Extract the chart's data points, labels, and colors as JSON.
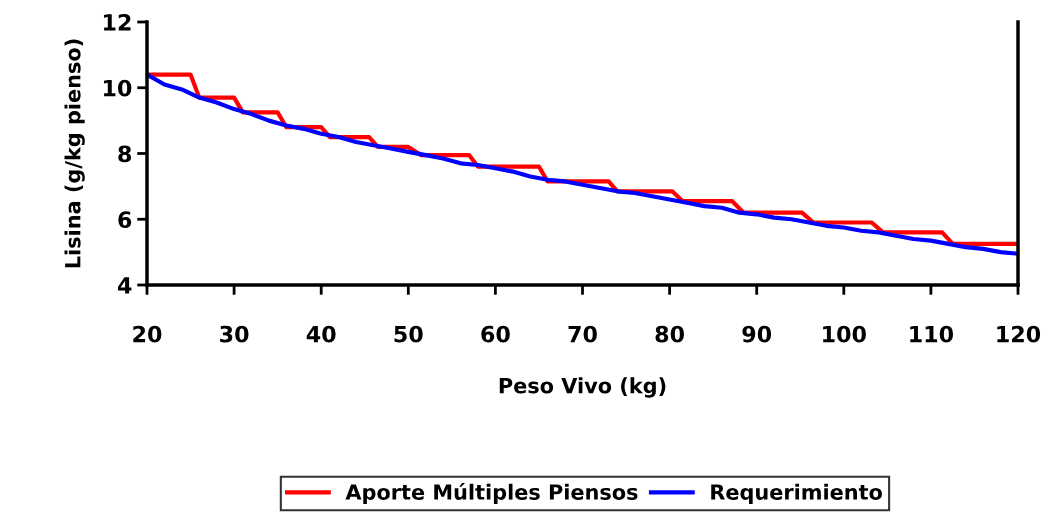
{
  "chart_data": {
    "type": "line",
    "xlabel": "Peso Vivo (kg)",
    "ylabel": "Lisina (g/kg pienso)",
    "xlim": [
      20,
      120
    ],
    "xticks": [
      20,
      30,
      40,
      50,
      60,
      70,
      80,
      90,
      100,
      110,
      120
    ],
    "ylim": [
      4,
      12
    ],
    "yticks": [
      4,
      6,
      8,
      10,
      12
    ],
    "grid": false,
    "legend": "bottom",
    "marker": "none",
    "line_style": "solid",
    "series": [
      {
        "name": "Aporte Múltiples Piensos",
        "color": "#ff0000",
        "x": [
          20,
          25,
          26,
          30,
          31,
          35,
          36,
          40,
          41,
          45.5,
          46.5,
          50,
          51.5,
          57,
          58,
          65,
          66,
          73,
          74,
          80.3,
          81.5,
          87.2,
          88.5,
          95.2,
          96.5,
          103.2,
          104.5,
          111.3,
          112.5,
          120
        ],
        "values": [
          10.4,
          10.4,
          9.7,
          9.7,
          9.25,
          9.25,
          8.8,
          8.8,
          8.5,
          8.5,
          8.2,
          8.2,
          7.95,
          7.95,
          7.6,
          7.6,
          7.15,
          7.15,
          6.85,
          6.85,
          6.55,
          6.55,
          6.2,
          6.2,
          5.9,
          5.9,
          5.6,
          5.6,
          5.25,
          5.25
        ]
      },
      {
        "name": "Requerimiento",
        "color": "#0000ff",
        "x": [
          20,
          22,
          24,
          26,
          28,
          30,
          32,
          34,
          36,
          38,
          40,
          42,
          44,
          46,
          48,
          50,
          52,
          54,
          56,
          58,
          60,
          62,
          64,
          66,
          68,
          70,
          72,
          74,
          76,
          78,
          80,
          82,
          84,
          86,
          88,
          90,
          92,
          94,
          96,
          98,
          100,
          102,
          104,
          106,
          108,
          110,
          112,
          114,
          116,
          118,
          120
        ],
        "values": [
          10.4,
          10.1,
          9.95,
          9.7,
          9.55,
          9.35,
          9.2,
          9.0,
          8.85,
          8.75,
          8.6,
          8.5,
          8.35,
          8.25,
          8.15,
          8.05,
          7.95,
          7.85,
          7.7,
          7.65,
          7.55,
          7.45,
          7.3,
          7.2,
          7.15,
          7.05,
          6.95,
          6.85,
          6.8,
          6.7,
          6.6,
          6.5,
          6.4,
          6.35,
          6.2,
          6.15,
          6.05,
          6.0,
          5.9,
          5.8,
          5.75,
          5.65,
          5.6,
          5.5,
          5.4,
          5.35,
          5.25,
          5.15,
          5.1,
          5.0,
          4.95
        ]
      }
    ]
  }
}
